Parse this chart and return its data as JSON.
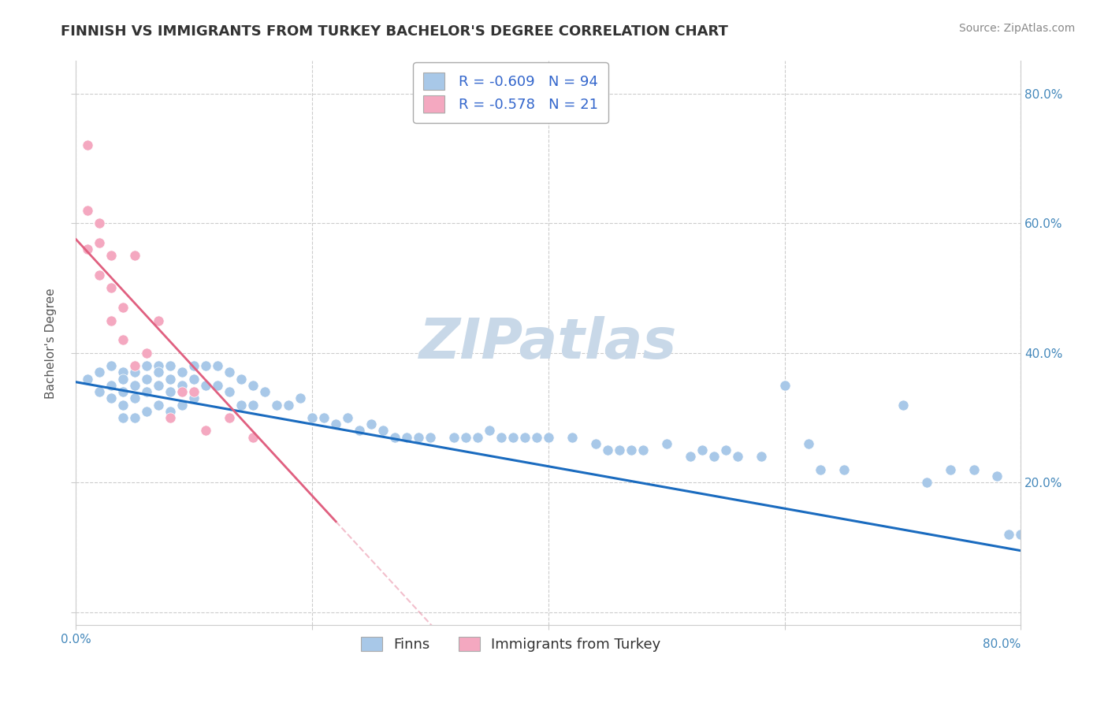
{
  "title": "FINNISH VS IMMIGRANTS FROM TURKEY BACHELOR'S DEGREE CORRELATION CHART",
  "source": "Source: ZipAtlas.com",
  "ylabel": "Bachelor's Degree",
  "xlabel": "",
  "xlim": [
    0.0,
    0.8
  ],
  "ylim": [
    -0.02,
    0.85
  ],
  "x_ticks": [
    0.0,
    0.2,
    0.4,
    0.6,
    0.8
  ],
  "y_ticks": [
    0.0,
    0.2,
    0.4,
    0.6,
    0.8
  ],
  "x_tick_labels": [
    "0.0%",
    "",
    "",
    "",
    ""
  ],
  "y_tick_labels": [
    "",
    "20.0%",
    "40.0%",
    "60.0%",
    "80.0%"
  ],
  "right_y_tick_labels": [
    "",
    "20.0%",
    "40.0%",
    "60.0%",
    "80.0%"
  ],
  "bottom_x_label": "80.0%",
  "watermark": "ZIPatlas",
  "legend_r1": "R = -0.609",
  "legend_n1": "N = 94",
  "legend_r2": "R = -0.578",
  "legend_n2": "N = 21",
  "finn_color": "#a8c8e8",
  "turk_color": "#f4a8c0",
  "finn_line_color": "#1a6bbf",
  "turk_line_color": "#e06080",
  "finn_scatter_x": [
    0.01,
    0.02,
    0.02,
    0.03,
    0.03,
    0.03,
    0.04,
    0.04,
    0.04,
    0.04,
    0.04,
    0.05,
    0.05,
    0.05,
    0.05,
    0.06,
    0.06,
    0.06,
    0.06,
    0.07,
    0.07,
    0.07,
    0.07,
    0.08,
    0.08,
    0.08,
    0.08,
    0.09,
    0.09,
    0.09,
    0.1,
    0.1,
    0.1,
    0.11,
    0.11,
    0.12,
    0.12,
    0.13,
    0.13,
    0.14,
    0.14,
    0.15,
    0.15,
    0.16,
    0.17,
    0.18,
    0.19,
    0.2,
    0.21,
    0.22,
    0.23,
    0.24,
    0.25,
    0.26,
    0.27,
    0.28,
    0.29,
    0.3,
    0.32,
    0.33,
    0.34,
    0.35,
    0.36,
    0.37,
    0.38,
    0.39,
    0.4,
    0.42,
    0.44,
    0.45,
    0.46,
    0.47,
    0.48,
    0.5,
    0.52,
    0.53,
    0.54,
    0.55,
    0.56,
    0.58,
    0.6,
    0.62,
    0.63,
    0.65,
    0.7,
    0.72,
    0.74,
    0.76,
    0.78,
    0.79,
    0.8,
    0.8,
    0.8,
    0.8
  ],
  "finn_scatter_y": [
    0.36,
    0.37,
    0.34,
    0.38,
    0.35,
    0.33,
    0.37,
    0.36,
    0.34,
    0.32,
    0.3,
    0.37,
    0.35,
    0.33,
    0.3,
    0.38,
    0.36,
    0.34,
    0.31,
    0.38,
    0.37,
    0.35,
    0.32,
    0.38,
    0.36,
    0.34,
    0.31,
    0.37,
    0.35,
    0.32,
    0.38,
    0.36,
    0.33,
    0.38,
    0.35,
    0.38,
    0.35,
    0.37,
    0.34,
    0.36,
    0.32,
    0.35,
    0.32,
    0.34,
    0.32,
    0.32,
    0.33,
    0.3,
    0.3,
    0.29,
    0.3,
    0.28,
    0.29,
    0.28,
    0.27,
    0.27,
    0.27,
    0.27,
    0.27,
    0.27,
    0.27,
    0.28,
    0.27,
    0.27,
    0.27,
    0.27,
    0.27,
    0.27,
    0.26,
    0.25,
    0.25,
    0.25,
    0.25,
    0.26,
    0.24,
    0.25,
    0.24,
    0.25,
    0.24,
    0.24,
    0.35,
    0.26,
    0.22,
    0.22,
    0.32,
    0.2,
    0.22,
    0.22,
    0.21,
    0.12,
    0.12,
    0.12,
    0.12,
    0.12
  ],
  "turk_scatter_x": [
    0.01,
    0.01,
    0.01,
    0.02,
    0.02,
    0.02,
    0.03,
    0.03,
    0.03,
    0.04,
    0.04,
    0.05,
    0.05,
    0.06,
    0.07,
    0.08,
    0.09,
    0.1,
    0.11,
    0.13,
    0.15
  ],
  "turk_scatter_y": [
    0.56,
    0.62,
    0.72,
    0.52,
    0.57,
    0.6,
    0.55,
    0.5,
    0.45,
    0.47,
    0.42,
    0.55,
    0.38,
    0.4,
    0.45,
    0.3,
    0.34,
    0.34,
    0.28,
    0.3,
    0.27
  ],
  "finn_trendline_x": [
    0.0,
    0.8
  ],
  "finn_trendline_y": [
    0.355,
    0.095
  ],
  "turk_trendline_x": [
    0.0,
    0.22
  ],
  "turk_trendline_y": [
    0.575,
    0.14
  ],
  "grid_color": "#cccccc",
  "background_color": "#ffffff",
  "title_fontsize": 13,
  "axis_label_fontsize": 11,
  "tick_fontsize": 11,
  "legend_fontsize": 13,
  "source_fontsize": 10,
  "watermark_color": "#c8d8e8",
  "watermark_fontsize": 52,
  "dot_size": 90
}
